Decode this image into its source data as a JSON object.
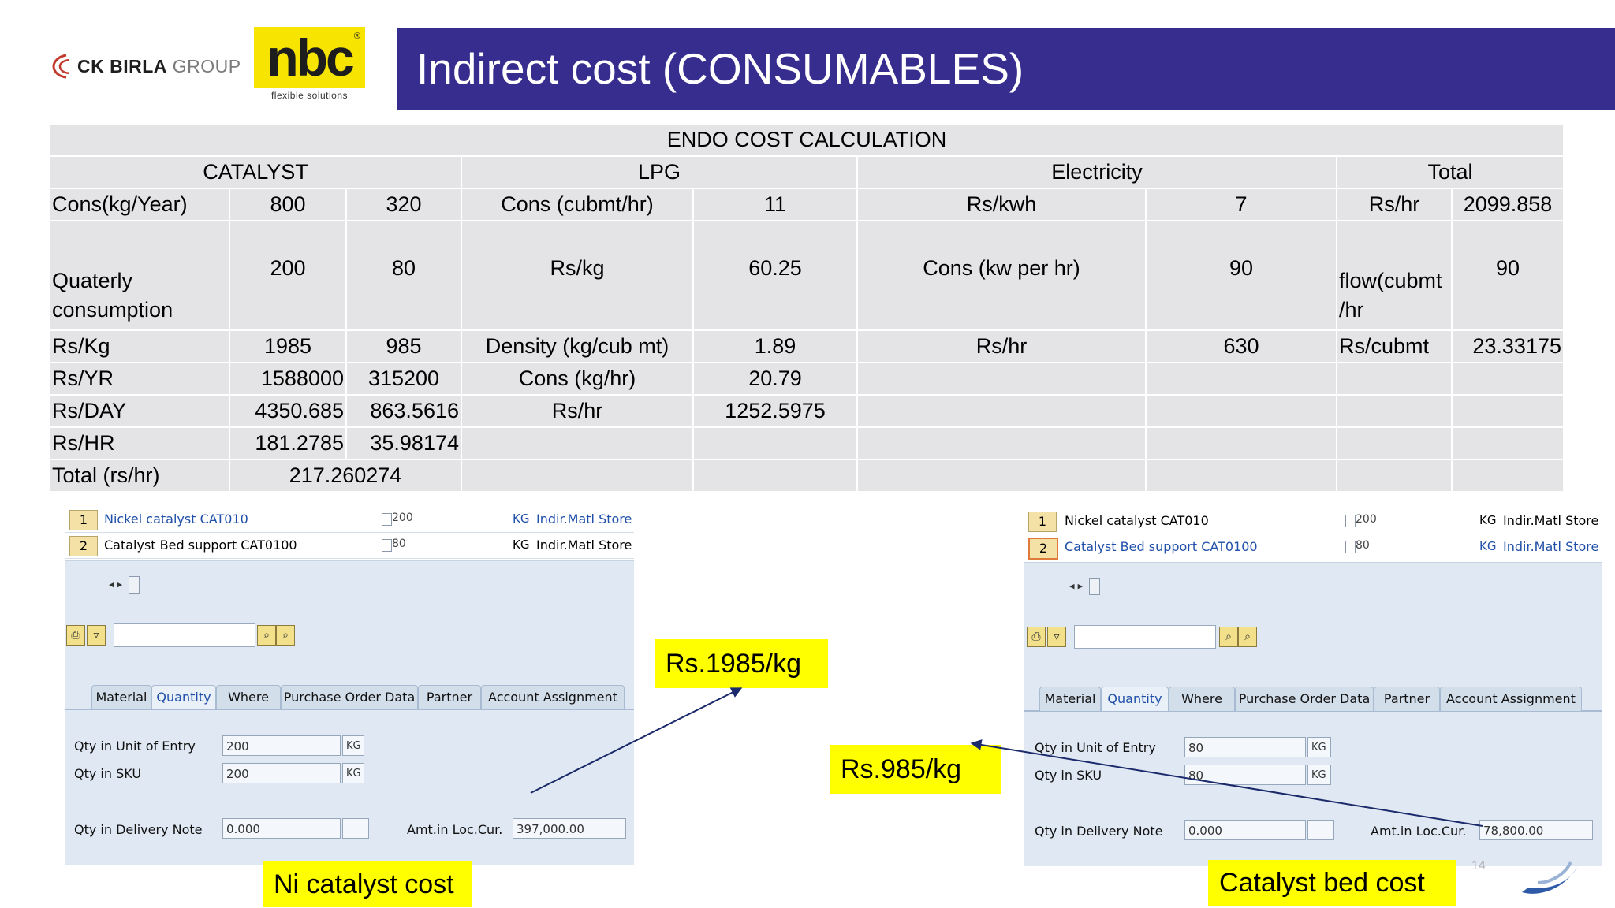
{
  "header": {
    "ck_logo_bold": "CK BIRLA",
    "ck_logo_rest": " GROUP",
    "nbc_logo": "nbc",
    "nbc_registered": "®",
    "nbc_tagline": "flexible solutions",
    "title": "Indirect cost (CONSUMABLES)"
  },
  "table": {
    "caption": "ENDO COST CALCULATION",
    "sections": {
      "catalyst": "CATALYST",
      "lpg": "LPG",
      "electricity": "Electricity",
      "total": "Total"
    },
    "rows": [
      [
        "Cons(kg/Year)",
        "800",
        "320",
        "Cons (cubmt/hr)",
        "11",
        "Rs/kwh",
        "7",
        "Rs/hr",
        "2099.858"
      ],
      [
        "Quaterly consumption",
        "200",
        "80",
        "Rs/kg",
        "60.25",
        "Cons (kw per hr)",
        "90",
        "flow(cubmt /hr",
        "90"
      ],
      [
        "Rs/Kg",
        "1985",
        "985",
        "Density (kg/cub mt)",
        "1.89",
        "Rs/hr",
        "630",
        "Rs/cubmt",
        "23.33175"
      ],
      [
        "Rs/YR",
        "1588000",
        "315200",
        "Cons (kg/hr)",
        "20.79",
        "",
        "",
        "",
        ""
      ],
      [
        "Rs/DAY",
        "4350.685",
        "863.5616",
        "Rs/hr",
        "1252.5975",
        "",
        "",
        "",
        ""
      ],
      [
        "Rs/HR",
        "181.2785",
        "35.98174",
        "",
        "",
        "",
        "",
        "",
        ""
      ]
    ],
    "total_row_label": "Total  (rs/hr)",
    "total_row_value": "217.260274"
  },
  "sap_left": {
    "items": [
      {
        "num": "1",
        "material": "Nickel catalyst  CAT010",
        "qty": "200",
        "uom": "KG",
        "plant": "Indir.Matl Store"
      },
      {
        "num": "2",
        "material": "Catalyst Bed support CAT0100",
        "qty": "80",
        "uom": "KG",
        "plant": "Indir.Matl Store"
      }
    ],
    "tabs": [
      "Material",
      "Quantity",
      "Where",
      "Purchase Order Data",
      "Partner",
      "Account Assignment"
    ],
    "fields": {
      "qty_unit_entry_label": "Qty in Unit of Entry",
      "qty_unit_entry_value": "200",
      "qty_unit_entry_uom": "KG",
      "qty_sku_label": "Qty in SKU",
      "qty_sku_value": "200",
      "qty_sku_uom": "KG",
      "qty_delivery_label": "Qty in Delivery Note",
      "qty_delivery_value": "0.000",
      "amt_label": "Amt.in Loc.Cur.",
      "amt_value": "397,000.00"
    }
  },
  "sap_right": {
    "items": [
      {
        "num": "1",
        "material": "Nickel catalyst  CAT010",
        "qty": "200",
        "uom": "KG",
        "plant": "Indir.Matl Store"
      },
      {
        "num": "2",
        "material": "Catalyst Bed support CAT0100",
        "qty": "80",
        "uom": "KG",
        "plant": "Indir.Matl Store"
      }
    ],
    "tabs": [
      "Material",
      "Quantity",
      "Where",
      "Purchase Order Data",
      "Partner",
      "Account Assignment"
    ],
    "fields": {
      "qty_unit_entry_label": "Qty in Unit of Entry",
      "qty_unit_entry_value": "80",
      "qty_unit_entry_uom": "KG",
      "qty_sku_label": "Qty in SKU",
      "qty_sku_value": "80",
      "qty_sku_uom": "KG",
      "qty_delivery_label": "Qty in Delivery Note",
      "qty_delivery_value": "0.000",
      "amt_label": "Amt.in Loc.Cur.",
      "amt_value": "78,800.00"
    }
  },
  "callouts": {
    "rs1985": "Rs.1985/kg",
    "rs985": "Rs.985/kg",
    "ni_cost": "Ni catalyst cost",
    "bed_cost": "Catalyst bed cost"
  },
  "page_number": "14",
  "colors": {
    "title_bar": "#362d8f",
    "table_cell": "#e4e4e6",
    "callout": "#ffff00",
    "arrow": "#1a2a6b"
  }
}
